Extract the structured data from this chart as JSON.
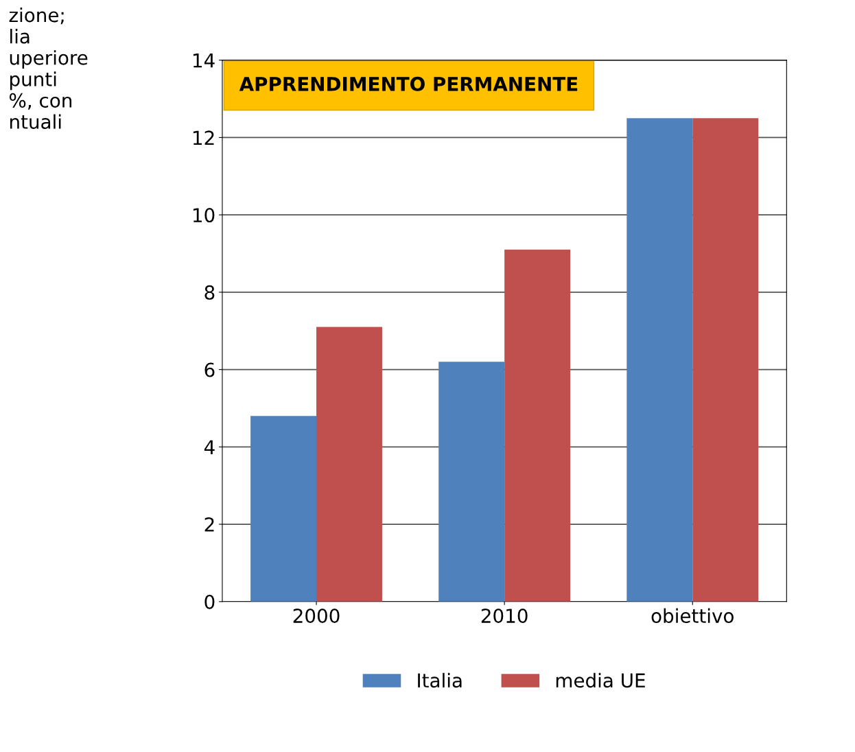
{
  "chart_data": {
    "type": "bar",
    "title": "APPRENDIMENTO PERMANENTE",
    "categories": [
      "2000",
      "2010",
      "obiettivo"
    ],
    "series": [
      {
        "name": "Italia",
        "color": "#4f81bd",
        "values": [
          4.8,
          6.2,
          12.5
        ]
      },
      {
        "name": "media UE",
        "color": "#c0504d",
        "values": [
          7.1,
          9.1,
          12.5
        ]
      }
    ],
    "ylim": [
      0,
      14
    ],
    "yticks": [
      0,
      2,
      4,
      6,
      8,
      10,
      12,
      14
    ],
    "grid": "y",
    "legend": "bottom",
    "annotations": [
      "zione;\nlia\nuperiore\npunti\n%, con\nntuali"
    ]
  }
}
